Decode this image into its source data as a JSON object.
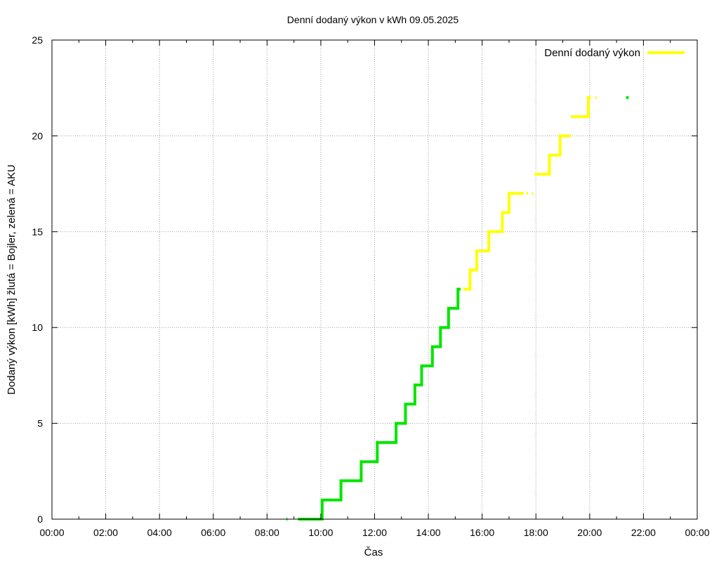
{
  "chart_data": {
    "type": "line",
    "title": "Denní dodaný výkon v kWh 09.05.2025",
    "xlabel": "Čas",
    "ylabel": "Dodaný výkon [kWh]  žlutá = Bojler, zelená = AKU",
    "xlim": [
      0,
      24
    ],
    "ylim": [
      0,
      25
    ],
    "x_ticks": [
      "00:00",
      "02:00",
      "04:00",
      "06:00",
      "08:00",
      "10:00",
      "12:00",
      "14:00",
      "16:00",
      "18:00",
      "20:00",
      "22:00",
      "00:00"
    ],
    "y_ticks": [
      "0",
      "5",
      "10",
      "15",
      "20",
      "25"
    ],
    "grid": true,
    "legend": {
      "position": "top-right",
      "entries": [
        "Denní dodaný výkon"
      ]
    },
    "colors": {
      "aku": "#00e600",
      "bojler": "#ffff00",
      "grid": "#a0a0a0",
      "axis": "#000000"
    },
    "series": [
      {
        "color": "#00e600",
        "segments": [
          [
            [
              8.72,
              0
            ],
            [
              8.76,
              0
            ]
          ],
          [
            [
              9.15,
              0
            ],
            [
              10.05,
              0
            ],
            [
              10.05,
              1
            ],
            [
              10.75,
              1
            ],
            [
              10.75,
              2
            ],
            [
              11.5,
              2
            ],
            [
              11.5,
              3
            ],
            [
              12.1,
              3
            ],
            [
              12.1,
              4
            ],
            [
              12.8,
              4
            ],
            [
              12.8,
              5
            ],
            [
              13.15,
              5
            ],
            [
              13.15,
              6
            ],
            [
              13.5,
              6
            ],
            [
              13.5,
              7
            ],
            [
              13.75,
              7
            ],
            [
              13.75,
              8
            ],
            [
              14.15,
              8
            ],
            [
              14.15,
              9
            ],
            [
              14.45,
              9
            ],
            [
              14.45,
              10
            ],
            [
              14.75,
              10
            ],
            [
              14.75,
              11
            ],
            [
              15.1,
              11
            ],
            [
              15.1,
              12
            ],
            [
              15.2,
              12
            ]
          ],
          [
            [
              21.35,
              22
            ],
            [
              21.45,
              22
            ]
          ]
        ]
      },
      {
        "color": "#ffff00",
        "segments": [
          [
            [
              15.3,
              12
            ],
            [
              15.55,
              12
            ],
            [
              15.55,
              13
            ],
            [
              15.8,
              13
            ],
            [
              15.8,
              14
            ],
            [
              16.25,
              14
            ],
            [
              16.25,
              15
            ],
            [
              16.75,
              15
            ],
            [
              16.75,
              16
            ],
            [
              17.0,
              16
            ],
            [
              17.0,
              17
            ],
            [
              17.55,
              17
            ]
          ],
          [
            [
              17.65,
              17
            ],
            [
              17.7,
              17
            ]
          ],
          [
            [
              17.85,
              17
            ],
            [
              17.9,
              17
            ]
          ],
          [
            [
              17.95,
              18
            ],
            [
              18.5,
              18
            ],
            [
              18.5,
              19
            ],
            [
              18.9,
              19
            ],
            [
              18.9,
              20
            ],
            [
              19.3,
              20
            ]
          ],
          [
            [
              19.3,
              21
            ],
            [
              19.95,
              21
            ],
            [
              19.95,
              22
            ],
            [
              20.05,
              22
            ]
          ],
          [
            [
              20.2,
              22
            ],
            [
              20.25,
              22
            ]
          ]
        ]
      }
    ]
  }
}
